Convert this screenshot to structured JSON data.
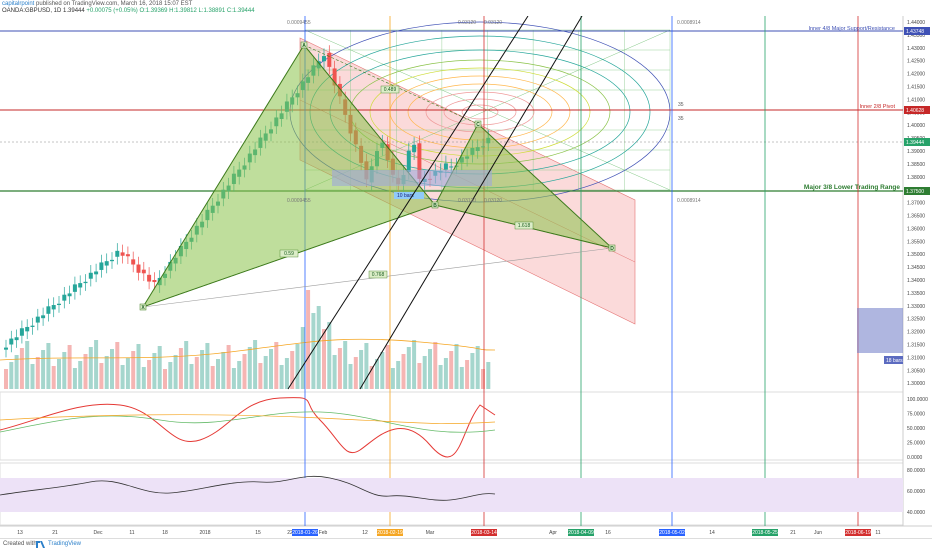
{
  "header": {
    "publisher": "capitalrpoint",
    "published_text": " published on TradingView.com, March 16, 2018 15:07 EST",
    "symbol": "OANDA:GBPUSD, 1D",
    "last_price": "1.39444",
    "change": "+0.00075 (+0.05%)",
    "ohlc": "O:1.39369 H:1.39812 L:1.38891 C:1.39444"
  },
  "price_axis": {
    "ticks": [
      "1.44000",
      "1.43500",
      "1.43000",
      "1.42500",
      "1.42000",
      "1.41500",
      "1.41000",
      "1.40500",
      "1.40000",
      "1.39500",
      "1.39000",
      "1.38500",
      "1.38000",
      "1.37500",
      "1.37000",
      "1.36500",
      "1.36000",
      "1.35500",
      "1.35000",
      "1.34500",
      "1.34000",
      "1.33500",
      "1.33000",
      "1.32500",
      "1.32000",
      "1.31500",
      "1.31000",
      "1.30500",
      "1.30000"
    ],
    "badges": {
      "top": "1.43748",
      "inner_pivot": "1.40628",
      "current": "1.39444",
      "lower_range": "1.37500"
    },
    "bars_label": "18 bars"
  },
  "lines": {
    "major_resistance_label": "Inner 4/8 Major Support/Resistance",
    "inner_pivot_label": "Inner 2/8 Pivot",
    "lower_range_label": "Major 3/8 Lower Trading Range",
    "top_values": [
      "0.0009455",
      "0.03120",
      "0.03120",
      "0.0008914"
    ],
    "mid_values": [
      "0.0009455",
      "0.03120",
      "0.03120",
      "0.0008914"
    ],
    "small_label_35a": "35",
    "small_label_35b": "35"
  },
  "pattern": {
    "points": {
      "x": "X",
      "a": "A",
      "b": "B",
      "c": "C",
      "d": "D"
    },
    "ratios": {
      "xa_b": "0.59",
      "ac": "0.489",
      "bd": "0.768",
      "xd": "1.618"
    },
    "shift_label": "10 bars"
  },
  "rsi_axis": [
    "100.0000",
    "75.0000",
    "50.0000",
    "25.0000",
    "0.0000"
  ],
  "osc_axis": [
    "80.0000",
    "60.0000",
    "40.0000"
  ],
  "time_axis": {
    "labels": [
      "13",
      "21",
      "Dec",
      "11",
      "18",
      "2018",
      "15",
      "22",
      "Feb",
      "12",
      "19",
      "Mar",
      "Apr",
      "16",
      "14",
      "21",
      "Jun",
      "11"
    ],
    "date_badges": [
      {
        "text": "2018-01-26",
        "color": "#2962ff"
      },
      {
        "text": "2018-02-19",
        "color": "#f5a623"
      },
      {
        "text": "2018-03-14",
        "color": "#d32f2f"
      },
      {
        "text": "2018-04-09",
        "color": "#26a269"
      },
      {
        "text": "2018-05-02",
        "color": "#2962ff"
      },
      {
        "text": "2018-05-25",
        "color": "#26a269"
      },
      {
        "text": "2018-06-19",
        "color": "#d32f2f"
      }
    ]
  },
  "footer": {
    "created_with": "Created with",
    "brand": "TradingView"
  },
  "colors": {
    "up": "#26a69a",
    "down": "#ef5350",
    "pattern_fill": "#8bc34a",
    "pattern_edge": "#3d7a1c",
    "pink_channel": "#f8bbbb",
    "blue_line": "#3f51b5",
    "red_line": "#c62828",
    "green_line": "#2e7d32",
    "rsi": "#e53935",
    "osc_fill": "#ede2f7"
  }
}
